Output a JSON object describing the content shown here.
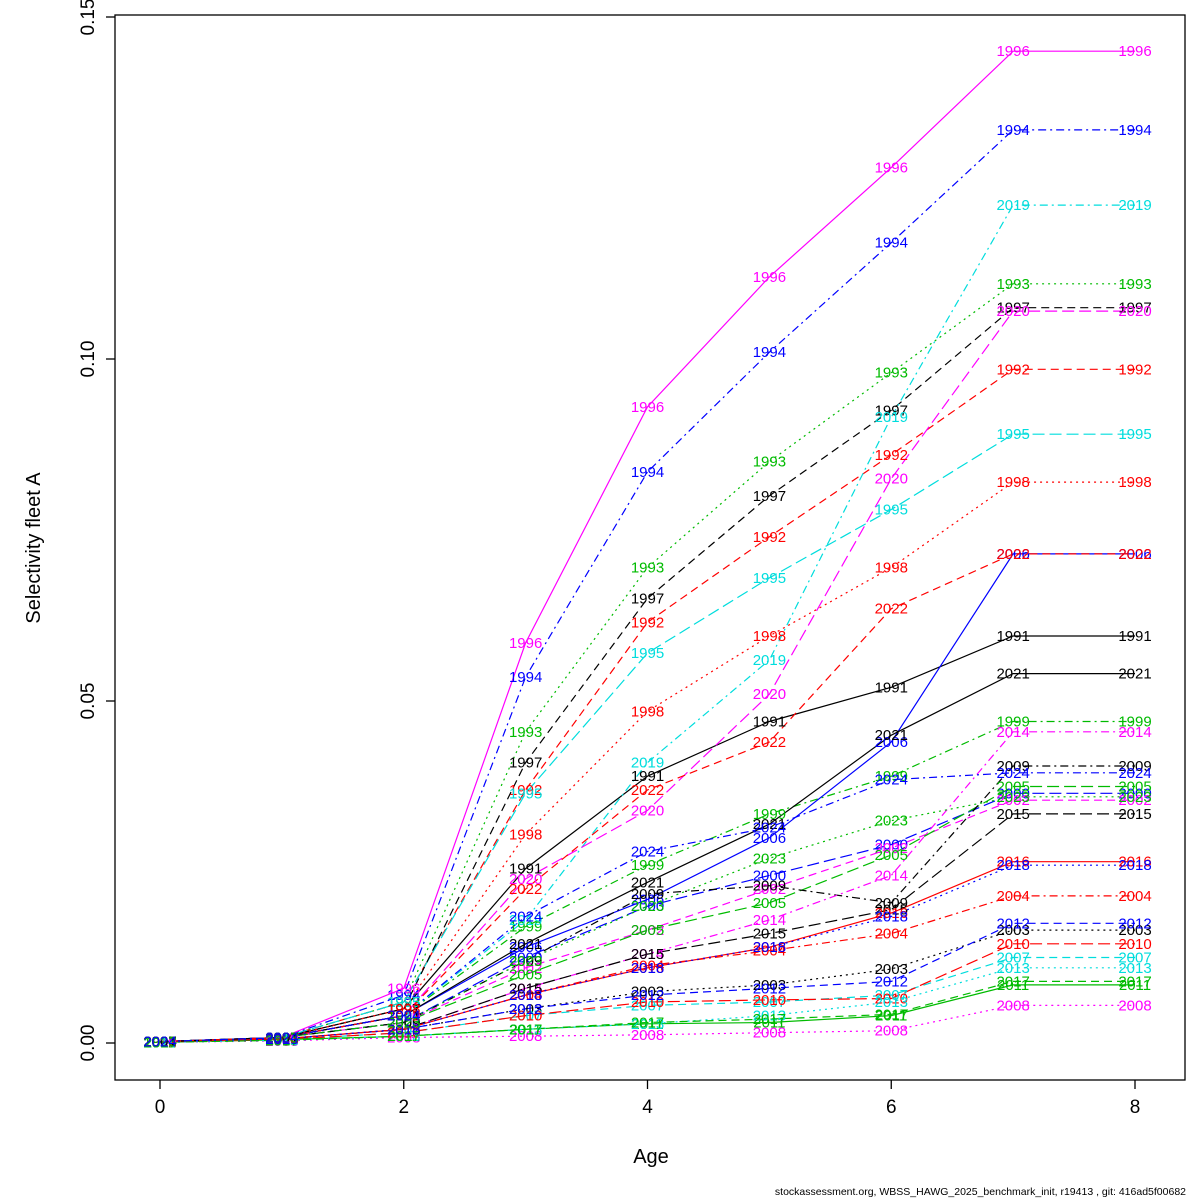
{
  "chart_data": {
    "type": "line",
    "title": "",
    "xlabel": "Age",
    "ylabel": "Selectivity fleet A",
    "x": [
      0,
      1,
      2,
      3,
      4,
      5,
      6,
      7,
      8
    ],
    "xlim": [
      0,
      8
    ],
    "ylim": [
      0.0,
      0.15
    ],
    "grid": false,
    "legend": "labels-on-lines",
    "xticks": {
      "values": [
        0,
        2,
        4,
        6,
        8
      ],
      "labels": [
        "0",
        "2",
        "4",
        "6",
        "8"
      ]
    },
    "yticks": {
      "values": [
        0.0,
        0.05,
        0.1,
        0.15
      ],
      "labels": [
        "0.00",
        "0.05",
        "0.10",
        "0.15"
      ]
    },
    "palette": {
      "black": "#000000",
      "red": "#FF0000",
      "green": "#00BB00",
      "blue": "#0000FF",
      "cyan": "#00DDDD",
      "magenta": "#FF00FF"
    },
    "series": [
      {
        "name": "1991",
        "color": "#000000",
        "linetype": "solid",
        "values": [
          0.0002,
          0.0008,
          0.005,
          0.0255,
          0.039,
          0.047,
          0.052,
          0.0595,
          0.0595
        ]
      },
      {
        "name": "1992",
        "color": "#FF0000",
        "linetype": "dashed",
        "values": [
          0.0002,
          0.0008,
          0.006,
          0.037,
          0.0615,
          0.074,
          0.086,
          0.0985,
          0.0985
        ]
      },
      {
        "name": "1993",
        "color": "#00BB00",
        "linetype": "dotted",
        "values": [
          0.0002,
          0.0008,
          0.006,
          0.0455,
          0.0695,
          0.085,
          0.098,
          0.111,
          0.111
        ]
      },
      {
        "name": "1994",
        "color": "#0000FF",
        "linetype": "dotdash",
        "values": [
          0.0002,
          0.0008,
          0.007,
          0.0535,
          0.0835,
          0.101,
          0.117,
          0.1335,
          0.1335
        ]
      },
      {
        "name": "1995",
        "color": "#00DDDD",
        "linetype": "longdash",
        "values": [
          0.0002,
          0.0008,
          0.006,
          0.0365,
          0.057,
          0.068,
          0.078,
          0.089,
          0.089
        ]
      },
      {
        "name": "1996",
        "color": "#FF00FF",
        "linetype": "solid",
        "values": [
          0.0002,
          0.0008,
          0.008,
          0.0585,
          0.093,
          0.112,
          0.128,
          0.145,
          0.145
        ]
      },
      {
        "name": "1997",
        "color": "#000000",
        "linetype": "dashed",
        "values": [
          0.0002,
          0.0008,
          0.005,
          0.041,
          0.065,
          0.08,
          0.0925,
          0.1075,
          0.1075
        ]
      },
      {
        "name": "1998",
        "color": "#FF0000",
        "linetype": "dotted",
        "values": [
          0.0002,
          0.0008,
          0.005,
          0.0305,
          0.0485,
          0.0595,
          0.0695,
          0.082,
          0.082
        ]
      },
      {
        "name": "1999",
        "color": "#00BB00",
        "linetype": "dotdash",
        "values": [
          0.0002,
          0.0008,
          0.004,
          0.017,
          0.026,
          0.0335,
          0.039,
          0.047,
          0.047
        ]
      },
      {
        "name": "2000",
        "color": "#0000FF",
        "linetype": "longdash",
        "values": [
          0.0002,
          0.0008,
          0.003,
          0.0125,
          0.02,
          0.0245,
          0.029,
          0.0365,
          0.0365
        ]
      },
      {
        "name": "2002",
        "color": "#FF00FF",
        "linetype": "dashed",
        "values": [
          0.0002,
          0.0008,
          0.003,
          0.011,
          0.0165,
          0.0225,
          0.0285,
          0.0355,
          0.0355
        ]
      },
      {
        "name": "2003",
        "color": "#000000",
        "linetype": "dotted",
        "values": [
          0.0002,
          0.0006,
          0.002,
          0.005,
          0.0075,
          0.0085,
          0.0108,
          0.0165,
          0.0165
        ]
      },
      {
        "name": "2004",
        "color": "#FF0000",
        "linetype": "dotdash",
        "values": [
          0.0002,
          0.0006,
          0.002,
          0.007,
          0.0113,
          0.0135,
          0.016,
          0.0215,
          0.0215
        ]
      },
      {
        "name": "2005",
        "color": "#00BB00",
        "linetype": "longdash",
        "values": [
          0.0002,
          0.0008,
          0.003,
          0.01,
          0.0165,
          0.0205,
          0.0275,
          0.0375,
          0.0375
        ]
      },
      {
        "name": "2006",
        "color": "#0000FF",
        "linetype": "solid",
        "values": [
          0.0002,
          0.0008,
          0.004,
          0.014,
          0.021,
          0.03,
          0.044,
          0.0715,
          0.0715
        ]
      },
      {
        "name": "2007",
        "color": "#00DDDD",
        "linetype": "dashed",
        "values": [
          0.0001,
          0.0005,
          0.0015,
          0.004,
          0.0055,
          0.006,
          0.007,
          0.0125,
          0.0125
        ]
      },
      {
        "name": "2008",
        "color": "#FF00FF",
        "linetype": "dotted",
        "values": [
          0.0001,
          0.0003,
          0.0008,
          0.001,
          0.0012,
          0.0015,
          0.0018,
          0.0055,
          0.0055
        ]
      },
      {
        "name": "2009",
        "color": "#000000",
        "linetype": "dotdash",
        "values": [
          0.0002,
          0.0008,
          0.003,
          0.012,
          0.0218,
          0.023,
          0.0205,
          0.0405,
          0.0405
        ]
      },
      {
        "name": "2010",
        "color": "#FF0000",
        "linetype": "longdash",
        "values": [
          0.0001,
          0.0005,
          0.0015,
          0.004,
          0.006,
          0.0063,
          0.0065,
          0.0145,
          0.0145
        ]
      },
      {
        "name": "2011",
        "color": "#00BB00",
        "linetype": "solid",
        "values": [
          0.0001,
          0.0005,
          0.001,
          0.002,
          0.0028,
          0.003,
          0.004,
          0.0085,
          0.0085
        ]
      },
      {
        "name": "2012",
        "color": "#0000FF",
        "linetype": "dashed",
        "values": [
          0.0002,
          0.0006,
          0.002,
          0.005,
          0.007,
          0.008,
          0.009,
          0.0175,
          0.0175
        ]
      },
      {
        "name": "2013",
        "color": "#00DDDD",
        "linetype": "dotted",
        "values": [
          0.0001,
          0.0004,
          0.001,
          0.002,
          0.0028,
          0.004,
          0.006,
          0.011,
          0.011
        ]
      },
      {
        "name": "2014",
        "color": "#FF00FF",
        "linetype": "dotdash",
        "values": [
          0.0002,
          0.0006,
          0.002,
          0.008,
          0.013,
          0.018,
          0.0245,
          0.0455,
          0.0455
        ]
      },
      {
        "name": "2015",
        "color": "#000000",
        "linetype": "longdash",
        "values": [
          0.0002,
          0.0006,
          0.002,
          0.008,
          0.013,
          0.016,
          0.0195,
          0.0335,
          0.0335
        ]
      },
      {
        "name": "2016",
        "color": "#FF0000",
        "linetype": "solid",
        "values": [
          0.0002,
          0.0006,
          0.002,
          0.007,
          0.011,
          0.014,
          0.019,
          0.0265,
          0.0265
        ]
      },
      {
        "name": "2017",
        "color": "#00BB00",
        "linetype": "dashed",
        "values": [
          0.0001,
          0.0004,
          0.001,
          0.002,
          0.003,
          0.0035,
          0.0042,
          0.009,
          0.009
        ]
      },
      {
        "name": "2018",
        "color": "#0000FF",
        "linetype": "dotted",
        "values": [
          0.0002,
          0.0006,
          0.002,
          0.007,
          0.011,
          0.014,
          0.0185,
          0.026,
          0.026
        ]
      },
      {
        "name": "2019",
        "color": "#00DDDD",
        "linetype": "dotdash",
        "values": [
          0.0002,
          0.0008,
          0.004,
          0.018,
          0.041,
          0.056,
          0.0915,
          0.1225,
          0.1225
        ]
      },
      {
        "name": "2020",
        "color": "#FF00FF",
        "linetype": "longdash",
        "values": [
          0.0002,
          0.0008,
          0.004,
          0.024,
          0.034,
          0.051,
          0.0825,
          0.107,
          0.107
        ]
      },
      {
        "name": "2021",
        "color": "#000000",
        "linetype": "solid",
        "values": [
          0.0002,
          0.0008,
          0.004,
          0.0145,
          0.0235,
          0.032,
          0.045,
          0.054,
          0.054
        ]
      },
      {
        "name": "2022",
        "color": "#FF0000",
        "linetype": "dashed",
        "values": [
          0.0002,
          0.0008,
          0.004,
          0.0225,
          0.037,
          0.044,
          0.0635,
          0.0715,
          0.0715
        ]
      },
      {
        "name": "2023",
        "color": "#00BB00",
        "linetype": "dotted",
        "values": [
          0.0002,
          0.0008,
          0.003,
          0.012,
          0.02,
          0.027,
          0.0325,
          0.036,
          0.036
        ]
      },
      {
        "name": "2024",
        "color": "#0000FF",
        "linetype": "dotdash",
        "values": [
          0.0002,
          0.0008,
          0.004,
          0.0185,
          0.028,
          0.0315,
          0.0385,
          0.0395,
          0.0395
        ]
      }
    ]
  },
  "footer": {
    "text": "stockassessment.org, WBSS_HAWG_2025_benchmark_init, r19413 , git: 416ad5f00682"
  }
}
